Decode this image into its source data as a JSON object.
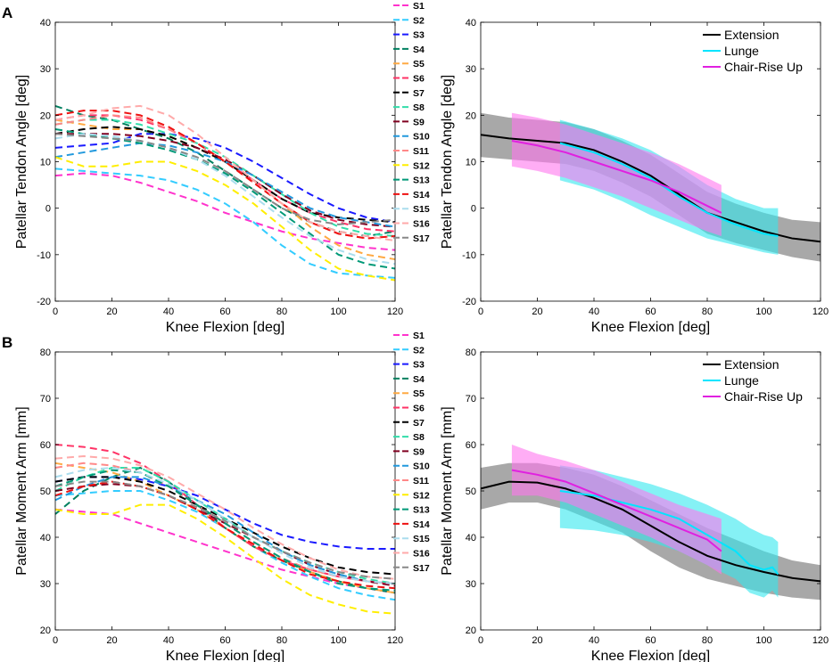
{
  "panels": {
    "a": "A",
    "b": "B"
  },
  "colors": {
    "S1": "#ff33cc",
    "S2": "#33ccff",
    "S3": "#1a1aff",
    "S4": "#008060",
    "S5": "#ffaa44",
    "S6": "#ff3366",
    "S7": "#000000",
    "S8": "#33ddaa",
    "S9": "#800020",
    "S10": "#2299dd",
    "S11": "#ff8888",
    "S12": "#ffee00",
    "S13": "#009977",
    "S14": "#ee1111",
    "S15": "#aaddee",
    "S16": "#ffaaaa",
    "S17": "#888888",
    "Extension": "#000000",
    "Lunge": "#00e5ff",
    "ChairRise": "#e020e0",
    "ExtensionBand": "#999999",
    "LungeBand": "#33e8ee",
    "ChairRiseBand": "#ff77ee"
  },
  "chart_data": [
    {
      "id": "A-left",
      "type": "line",
      "xlabel": "Knee Flexion [deg]",
      "ylabel": "Patellar Tendon Angle [deg]",
      "xlim": [
        0,
        120
      ],
      "ylim": [
        -20,
        40
      ],
      "xticks": [
        0,
        20,
        40,
        60,
        80,
        100,
        120
      ],
      "yticks": [
        -20,
        -10,
        0,
        10,
        20,
        30,
        40
      ],
      "x": [
        0,
        10,
        20,
        30,
        40,
        50,
        60,
        70,
        80,
        90,
        100,
        110,
        120
      ],
      "series": [
        {
          "name": "S1",
          "values": [
            7,
            7.5,
            7,
            5.5,
            3.5,
            1.5,
            -1,
            -3,
            -5,
            -6.5,
            -7.5,
            -8.5,
            -9
          ]
        },
        {
          "name": "S2",
          "values": [
            8.5,
            8,
            7.5,
            7,
            6,
            4,
            1,
            -3,
            -8,
            -12,
            -14,
            -14.5,
            -15
          ]
        },
        {
          "name": "S3",
          "values": [
            13,
            13.5,
            14,
            16,
            16,
            15,
            13,
            10,
            6.5,
            3,
            0,
            -2,
            -3
          ]
        },
        {
          "name": "S4",
          "values": [
            22,
            20,
            19,
            17,
            15,
            12,
            8,
            4,
            0,
            -3,
            -5,
            -6,
            -5
          ]
        },
        {
          "name": "S5",
          "values": [
            19,
            18,
            17,
            17,
            15.5,
            13,
            10,
            6,
            1,
            -4,
            -8,
            -10,
            -11
          ]
        },
        {
          "name": "S6",
          "values": [
            19,
            20,
            20,
            19,
            17,
            14,
            10,
            6,
            2,
            -1,
            -3,
            -4.5,
            -5
          ]
        },
        {
          "name": "S7",
          "values": [
            16,
            17,
            17.5,
            17,
            15.5,
            13,
            10,
            6,
            2,
            -1,
            -2,
            -2.5,
            -3
          ]
        },
        {
          "name": "S8",
          "values": [
            18,
            19,
            19,
            18,
            16,
            14,
            11,
            7,
            3,
            -1,
            -4,
            -5.5,
            -6
          ]
        },
        {
          "name": "S9",
          "values": [
            16,
            16,
            16,
            15.5,
            14.5,
            13,
            10.5,
            7,
            3,
            -0.5,
            -2.5,
            -3.5,
            -4
          ]
        },
        {
          "name": "S10",
          "values": [
            11,
            12,
            13,
            14,
            13.5,
            12,
            10,
            7,
            3.5,
            0,
            -2,
            -3,
            -4
          ]
        },
        {
          "name": "S11",
          "values": [
            18,
            19,
            20,
            19.5,
            17,
            14,
            10,
            5.5,
            1,
            -3,
            -5.5,
            -6.5,
            -6
          ]
        },
        {
          "name": "S12",
          "values": [
            11,
            9,
            9,
            10,
            10,
            8,
            5,
            1,
            -4,
            -9,
            -13,
            -14.5,
            -15.5
          ]
        },
        {
          "name": "S13",
          "values": [
            17,
            16,
            15,
            14,
            12.5,
            10.5,
            7.5,
            3.5,
            -1,
            -5.5,
            -10,
            -12,
            -13
          ]
        },
        {
          "name": "S14",
          "values": [
            20,
            21,
            21,
            20,
            17.5,
            14,
            10,
            5.5,
            1,
            -3,
            -5.5,
            -6.5,
            -6
          ]
        },
        {
          "name": "S15",
          "values": [
            15,
            16,
            15.5,
            14.5,
            13,
            10.5,
            7,
            2.5,
            -2,
            -6,
            -9,
            -11,
            -12
          ]
        },
        {
          "name": "S16",
          "values": [
            19,
            20,
            21.5,
            22,
            20,
            16,
            11,
            6,
            1,
            -3,
            -5,
            -6,
            -7
          ]
        },
        {
          "name": "S17",
          "values": [
            16,
            15.5,
            15,
            14.5,
            13,
            11,
            8,
            4,
            0,
            -2.5,
            -3.5,
            -3,
            -2.5
          ]
        }
      ]
    },
    {
      "id": "A-right",
      "type": "area",
      "xlabel": "Knee Flexion [deg]",
      "ylabel": "Patellar Tendon Angle [deg]",
      "xlim": [
        0,
        120
      ],
      "ylim": [
        -20,
        40
      ],
      "xticks": [
        0,
        20,
        40,
        60,
        80,
        100,
        120
      ],
      "yticks": [
        -20,
        -10,
        0,
        10,
        20,
        30,
        40
      ],
      "legend": [
        "Extension",
        "Lunge",
        "Chair-Rise Up"
      ],
      "legend_position": "top-right",
      "series": [
        {
          "name": "Extension",
          "x": [
            0,
            10,
            20,
            30,
            40,
            50,
            60,
            70,
            80,
            90,
            100,
            110,
            120
          ],
          "mean": [
            15.8,
            15,
            14.5,
            14,
            12.5,
            10,
            7,
            3,
            -1,
            -3,
            -5,
            -6.5,
            -7.2
          ],
          "upper": [
            20.5,
            19.5,
            19,
            18.5,
            17,
            14.5,
            11.5,
            7.5,
            3.5,
            1,
            -1,
            -2.5,
            -3
          ],
          "lower": [
            11,
            10.5,
            10,
            9.5,
            8,
            5.5,
            2.5,
            -1.5,
            -5.5,
            -7.5,
            -9,
            -10.5,
            -11.5
          ]
        },
        {
          "name": "Lunge",
          "x": [
            28,
            40,
            50,
            60,
            70,
            80,
            90,
            100,
            105
          ],
          "mean": [
            14,
            12,
            9.5,
            6.5,
            2.5,
            -1,
            -3.5,
            -5.5,
            -6
          ],
          "upper": [
            19,
            17,
            15,
            12.5,
            9,
            5,
            2,
            0,
            0
          ],
          "lower": [
            6,
            4,
            1.5,
            -1.5,
            -4,
            -6.5,
            -8,
            -9.5,
            -10
          ]
        },
        {
          "name": "Chair-Rise Up",
          "x": [
            11,
            20,
            30,
            40,
            50,
            60,
            70,
            80,
            85
          ],
          "mean": [
            14.5,
            13.5,
            12,
            10,
            8,
            6,
            3.5,
            0.5,
            -1
          ],
          "upper": [
            20.5,
            19.5,
            18,
            16,
            14,
            12,
            9.5,
            6.5,
            5
          ],
          "lower": [
            9,
            8,
            6.5,
            4.5,
            2.5,
            0,
            -2.5,
            -5,
            -6
          ]
        }
      ]
    },
    {
      "id": "B-left",
      "type": "line",
      "xlabel": "Knee Flexion [deg]",
      "ylabel": "Patellar Moment Arm [mm]",
      "xlim": [
        0,
        120
      ],
      "ylim": [
        20,
        80
      ],
      "xticks": [
        0,
        20,
        40,
        60,
        80,
        100,
        120
      ],
      "yticks": [
        20,
        30,
        40,
        50,
        60,
        70,
        80
      ],
      "x": [
        0,
        10,
        20,
        30,
        40,
        50,
        60,
        70,
        80,
        90,
        100,
        110,
        120
      ],
      "series": [
        {
          "name": "S1",
          "values": [
            46,
            45.5,
            45,
            43,
            41,
            39,
            37,
            35,
            33,
            31.5,
            30,
            29,
            28
          ]
        },
        {
          "name": "S2",
          "values": [
            49,
            49.5,
            50,
            50,
            48,
            45.5,
            42,
            38,
            34.5,
            31.5,
            29,
            27.5,
            26.5
          ]
        },
        {
          "name": "S3",
          "values": [
            52,
            53,
            53,
            52.5,
            51,
            49,
            46,
            43,
            40.5,
            39,
            38,
            37.5,
            37.5
          ]
        },
        {
          "name": "S4",
          "values": [
            45,
            50,
            53,
            55,
            52,
            47,
            42,
            38,
            35,
            32.5,
            30.5,
            29,
            28
          ]
        },
        {
          "name": "S5",
          "values": [
            56,
            55,
            54,
            52,
            49,
            46,
            42,
            38,
            35,
            32.5,
            30.5,
            29,
            28
          ]
        },
        {
          "name": "S6",
          "values": [
            60,
            59.5,
            58.5,
            56,
            52,
            47,
            42,
            38,
            35,
            33,
            31.5,
            30.5,
            30
          ]
        },
        {
          "name": "S7",
          "values": [
            52,
            53,
            53,
            52,
            50,
            47,
            44,
            41,
            38,
            35.5,
            33.5,
            32.5,
            32
          ]
        },
        {
          "name": "S8",
          "values": [
            50,
            53,
            55,
            55,
            52,
            48,
            44,
            40,
            37,
            34.5,
            32.5,
            31,
            30
          ]
        },
        {
          "name": "S9",
          "values": [
            50,
            51,
            51.5,
            51,
            49,
            46,
            43,
            40,
            37,
            34,
            32,
            30.5,
            29.5
          ]
        },
        {
          "name": "S10",
          "values": [
            48,
            51,
            53,
            53,
            51,
            48,
            45,
            41,
            37,
            34,
            32,
            30.5,
            30
          ]
        },
        {
          "name": "S11",
          "values": [
            55,
            56,
            55.5,
            54,
            51,
            47,
            43,
            39,
            35.5,
            33,
            31.5,
            30.5,
            30
          ]
        },
        {
          "name": "S12",
          "values": [
            46,
            45,
            45,
            47,
            47,
            44,
            40,
            35.5,
            31,
            27.5,
            25.5,
            24,
            23.5
          ]
        },
        {
          "name": "S13",
          "values": [
            51,
            53,
            54.5,
            54,
            51,
            47,
            43,
            39,
            35.5,
            32.5,
            30,
            29,
            28.5
          ]
        },
        {
          "name": "S14",
          "values": [
            49,
            51,
            52,
            51,
            49,
            46,
            42,
            38.5,
            35,
            32,
            30.5,
            29.5,
            29
          ]
        },
        {
          "name": "S15",
          "values": [
            53,
            54.5,
            55,
            54,
            51.5,
            48,
            44,
            40,
            36.5,
            33.5,
            31.5,
            30.5,
            30
          ]
        },
        {
          "name": "S16",
          "values": [
            57,
            57.5,
            57,
            55.5,
            53,
            49.5,
            46,
            42,
            38.5,
            35.5,
            33,
            31.5,
            31
          ]
        },
        {
          "name": "S17",
          "values": [
            51,
            52,
            52,
            51,
            49,
            46.5,
            43.5,
            40,
            37,
            34.5,
            32.5,
            31.5,
            31
          ]
        }
      ]
    },
    {
      "id": "B-right",
      "type": "area",
      "xlabel": "Knee Flexion [deg]",
      "ylabel": "Patellar Moment Arm [mm]",
      "xlim": [
        0,
        120
      ],
      "ylim": [
        20,
        80
      ],
      "xticks": [
        0,
        20,
        40,
        60,
        80,
        100,
        120
      ],
      "yticks": [
        20,
        30,
        40,
        50,
        60,
        70,
        80
      ],
      "legend": [
        "Extension",
        "Lunge",
        "Chair-Rise Up"
      ],
      "legend_position": "top-right",
      "series": [
        {
          "name": "Extension",
          "x": [
            0,
            10,
            20,
            30,
            40,
            50,
            60,
            70,
            80,
            90,
            100,
            110,
            120
          ],
          "mean": [
            50.5,
            52,
            51.8,
            50.5,
            48.5,
            46,
            42.5,
            39,
            36,
            34,
            32.5,
            31.2,
            30.5
          ],
          "upper": [
            55,
            56,
            56,
            55,
            53.5,
            51,
            48,
            45,
            42,
            39.5,
            37,
            35,
            34
          ],
          "lower": [
            46,
            47.5,
            47.5,
            46,
            43.5,
            41,
            37,
            33.5,
            31,
            29.5,
            28,
            27,
            26.5
          ]
        },
        {
          "name": "Lunge",
          "x": [
            28,
            40,
            50,
            60,
            70,
            80,
            90,
            95,
            100,
            103,
            105
          ],
          "mean": [
            50,
            49,
            47.5,
            46,
            44,
            40.5,
            37,
            34,
            33,
            33.5,
            32
          ],
          "upper": [
            55.5,
            54.5,
            53,
            51.5,
            49.5,
            47,
            44,
            42,
            40.5,
            40,
            39
          ],
          "lower": [
            42,
            41.5,
            40.5,
            39,
            37,
            34,
            31,
            28,
            27,
            28.5,
            27
          ]
        },
        {
          "name": "Chair-Rise Up",
          "x": [
            11,
            20,
            30,
            40,
            50,
            60,
            70,
            80,
            85
          ],
          "mean": [
            54.5,
            53.5,
            52,
            49.5,
            47,
            44.5,
            42,
            39.5,
            37
          ],
          "upper": [
            60,
            58,
            56.5,
            54.5,
            52,
            49.5,
            47,
            45,
            44
          ],
          "lower": [
            49,
            49,
            47.5,
            45,
            42.5,
            40,
            37,
            34,
            32
          ]
        }
      ]
    }
  ]
}
